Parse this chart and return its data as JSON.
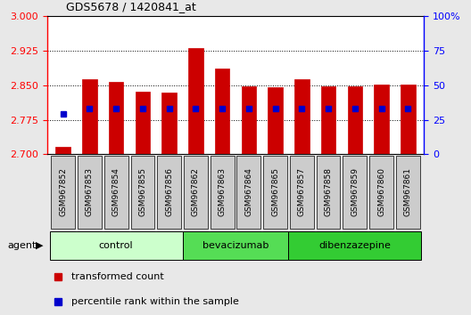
{
  "title": "GDS5678 / 1420841_at",
  "samples": [
    "GSM967852",
    "GSM967853",
    "GSM967854",
    "GSM967855",
    "GSM967856",
    "GSM967862",
    "GSM967863",
    "GSM967864",
    "GSM967865",
    "GSM967857",
    "GSM967858",
    "GSM967859",
    "GSM967860",
    "GSM967861"
  ],
  "red_values": [
    2.716,
    2.862,
    2.857,
    2.835,
    2.833,
    2.93,
    2.885,
    2.847,
    2.845,
    2.862,
    2.847,
    2.847,
    2.851,
    2.851
  ],
  "blue_percentile": [
    29,
    33,
    33,
    33,
    33,
    33,
    33,
    33,
    33,
    33,
    33,
    33,
    33,
    33
  ],
  "ymin": 2.7,
  "ymax": 3.0,
  "yticks": [
    2.7,
    2.775,
    2.85,
    2.925,
    3.0
  ],
  "right_yticks_vals": [
    0,
    25,
    50,
    75,
    100
  ],
  "right_yticks_labels": [
    "0",
    "25",
    "50",
    "75",
    "100%"
  ],
  "groups": [
    {
      "label": "control",
      "color": "#ccffcc",
      "start": 0,
      "end": 5
    },
    {
      "label": "bevacizumab",
      "color": "#55dd55",
      "start": 5,
      "end": 9
    },
    {
      "label": "dibenzazepine",
      "color": "#33cc33",
      "start": 9,
      "end": 14
    }
  ],
  "bar_color": "#cc0000",
  "blue_color": "#0000cc",
  "bg_color": "#e8e8e8",
  "plot_bg": "#ffffff",
  "xtick_bg": "#cccccc",
  "agent_label": "agent",
  "legend_red": "transformed count",
  "legend_blue": "percentile rank within the sample"
}
